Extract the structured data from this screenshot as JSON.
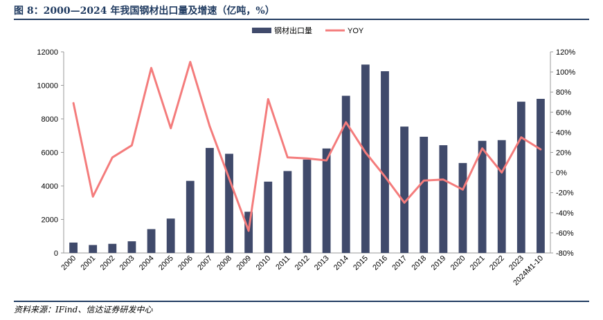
{
  "header": {
    "title": "图 8：2000—2024 年我国钢材出口量及增速（亿吨，%）"
  },
  "footer": {
    "source": "资料来源：IFind、信达证券研发中心"
  },
  "colors": {
    "bar": "#404a6b",
    "line": "#f47c7c",
    "rule": "#1f3a60"
  },
  "chart_data": {
    "type": "bar",
    "categories": [
      "2000",
      "2001",
      "2002",
      "2003",
      "2004",
      "2005",
      "2006",
      "2007",
      "2008",
      "2009",
      "2010",
      "2011",
      "2012",
      "2013",
      "2014",
      "2015",
      "2016",
      "2017",
      "2018",
      "2019",
      "2020",
      "2021",
      "2022",
      "2023",
      "2024M1-10"
    ],
    "series": [
      {
        "name": "钢材出口量",
        "type": "bar",
        "axis": "left",
        "color": "#404a6b",
        "values": [
          620,
          474,
          545,
          696,
          1423,
          2052,
          4301,
          6265,
          5918,
          2460,
          4256,
          4888,
          5573,
          6234,
          9378,
          11240,
          10843,
          7541,
          6933,
          6429,
          5367,
          6690,
          6732,
          9026,
          9195
        ]
      },
      {
        "name": "YOY",
        "type": "line",
        "axis": "right",
        "color": "#f47c7c",
        "values": [
          69,
          -24,
          15,
          27,
          104,
          44,
          110,
          46,
          -6,
          -58,
          73,
          15,
          14,
          12,
          50,
          20,
          -4,
          -30,
          -8,
          -7,
          -17,
          24,
          0,
          35,
          23
        ]
      }
    ],
    "yaxis_left": {
      "min": 0,
      "max": 12000,
      "ticks": [
        "0",
        "2000",
        "4000",
        "6000",
        "8000",
        "10000",
        "12000"
      ]
    },
    "yaxis_right": {
      "min": -80,
      "max": 120,
      "ticks": [
        "-80%",
        "-60%",
        "-40%",
        "-20%",
        "0%",
        "20%",
        "40%",
        "60%",
        "80%",
        "100%",
        "120%"
      ]
    },
    "grid": false,
    "legend": "top-center"
  }
}
